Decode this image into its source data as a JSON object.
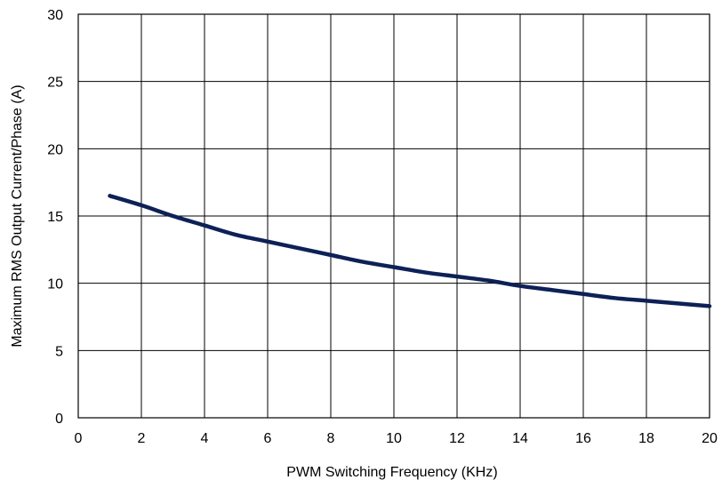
{
  "chart_data": {
    "type": "line",
    "title": "",
    "xlabel": "PWM Switching Frequency  (KHz)",
    "ylabel": "Maximum RMS Output Current/Phase  (A)",
    "xlim": [
      0,
      20
    ],
    "ylim": [
      0,
      30
    ],
    "x_ticks": [
      0,
      2,
      4,
      6,
      8,
      10,
      12,
      14,
      16,
      18,
      20
    ],
    "y_ticks": [
      0,
      5,
      10,
      15,
      20,
      25,
      30
    ],
    "x_tick_labels": [
      "0",
      "2",
      "4",
      "6",
      "8",
      "10",
      "12",
      "14",
      "16",
      "18",
      "20"
    ],
    "y_tick_labels": [
      "0",
      "5",
      "10",
      "15",
      "20",
      "25",
      "30"
    ],
    "grid": true,
    "series": [
      {
        "color": "#0d2157",
        "x": [
          1,
          2,
          3,
          4,
          5,
          6,
          7,
          8,
          9,
          10,
          11,
          12,
          13,
          14,
          15,
          16,
          17,
          18,
          19,
          20
        ],
        "y": [
          16.5,
          15.8,
          15.0,
          14.3,
          13.6,
          13.1,
          12.6,
          12.1,
          11.6,
          11.2,
          10.8,
          10.5,
          10.2,
          9.8,
          9.5,
          9.2,
          8.9,
          8.7,
          8.5,
          8.3
        ]
      }
    ]
  }
}
